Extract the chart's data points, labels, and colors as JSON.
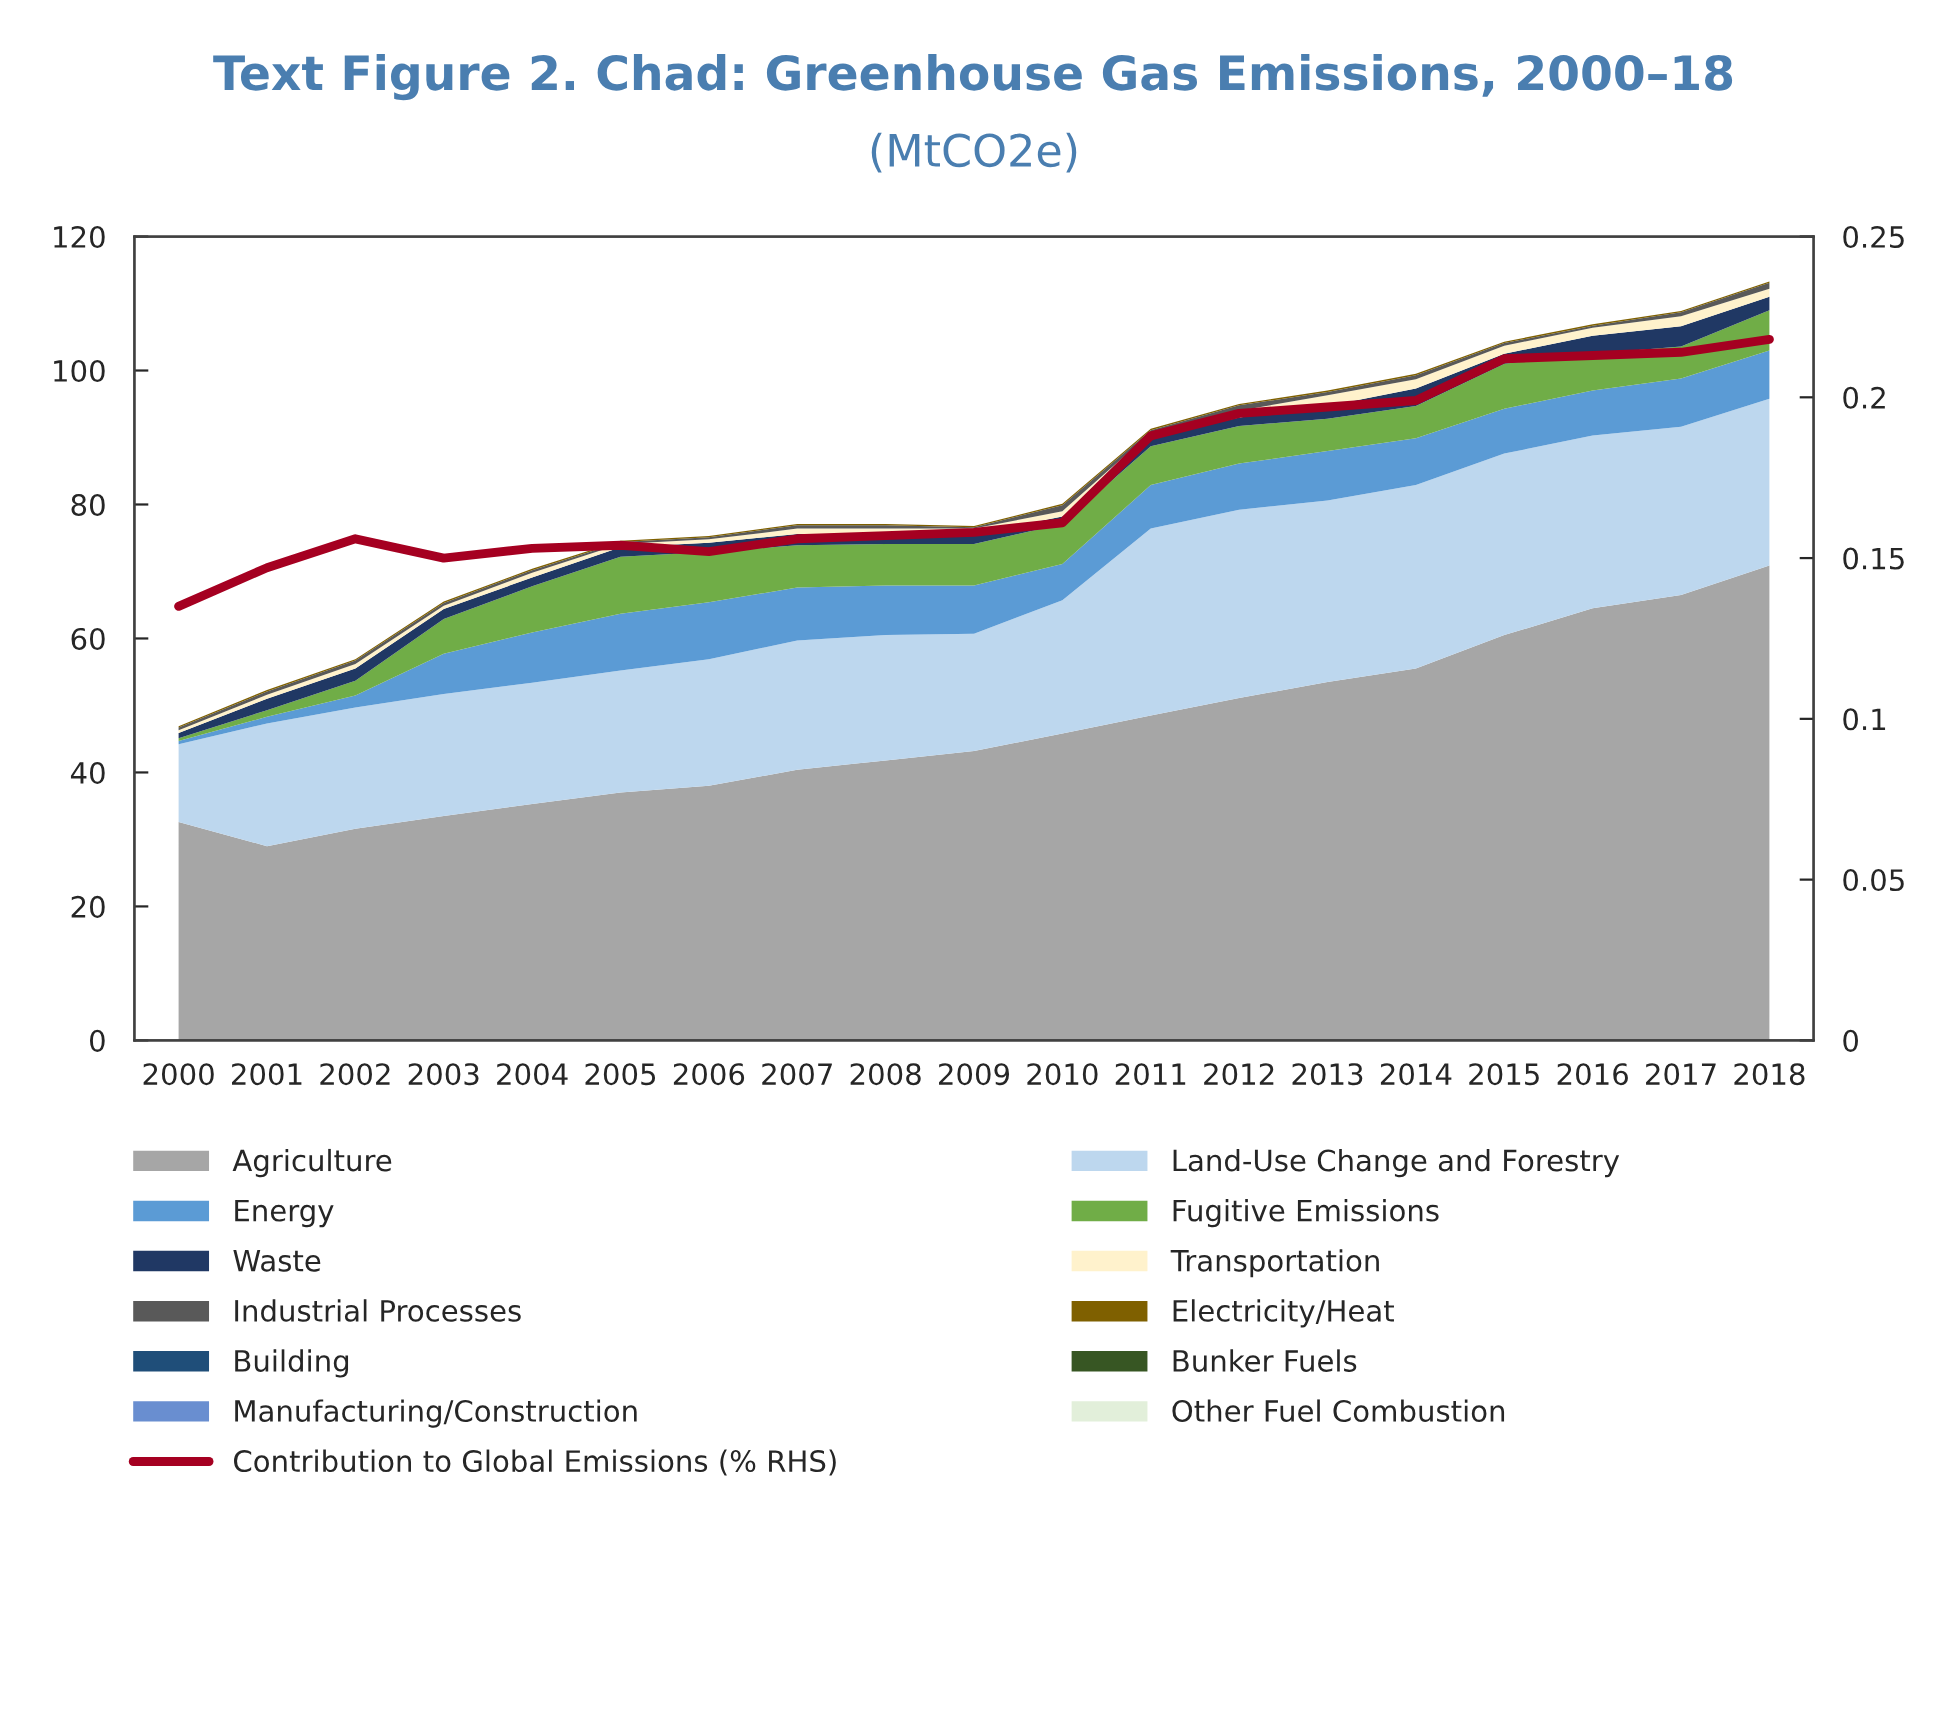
{
  "chart_data": {
    "type": "area",
    "stacked": true,
    "title": "Text Figure 2. Chad: Greenhouse Gas Emissions, 2000–18",
    "subtitle": "(MtCO2e)",
    "categories": [
      "2000",
      "2001",
      "2002",
      "2003",
      "2004",
      "2005",
      "2006",
      "2007",
      "2008",
      "2009",
      "2010",
      "2011",
      "2012",
      "2013",
      "2014",
      "2015",
      "2016",
      "2017",
      "2018"
    ],
    "ylim": [
      0,
      120
    ],
    "yticks": [
      0,
      20,
      40,
      60,
      80,
      100,
      120
    ],
    "y2lim": [
      0,
      0.25
    ],
    "y2ticks": [
      0,
      0.05,
      0.1,
      0.15,
      0.2,
      0.25
    ],
    "legend": "bottom",
    "grid": false,
    "series": [
      {
        "name": "Agriculture",
        "color": "#a6a6a6",
        "values": [
          32.6,
          29.0,
          31.6,
          33.5,
          35.3,
          37.0,
          38.0,
          40.4,
          41.8,
          43.2,
          45.8,
          48.5,
          51.1,
          53.5,
          55.5,
          60.5,
          64.5,
          66.5,
          70.9
        ]
      },
      {
        "name": "Land-Use Change and Forestry",
        "color": "#bdd7ee",
        "values": [
          11.6,
          18.3,
          18.1,
          18.2,
          18.1,
          18.2,
          18.9,
          19.3,
          18.7,
          17.5,
          19.9,
          27.9,
          28.1,
          27.1,
          27.4,
          27.1,
          25.8,
          25.1,
          24.9
        ]
      },
      {
        "name": "Energy",
        "color": "#5b9bd5",
        "values": [
          0.5,
          1.0,
          1.8,
          6.0,
          7.5,
          8.5,
          8.5,
          7.9,
          7.4,
          7.2,
          5.4,
          6.5,
          6.9,
          7.4,
          7.0,
          6.7,
          6.7,
          7.2,
          7.2
        ]
      },
      {
        "name": "Fugitive Emissions",
        "color": "#70ad47",
        "values": [
          0.4,
          1.0,
          2.2,
          5.2,
          6.9,
          8.5,
          7.5,
          6.3,
          6.2,
          6.2,
          6.0,
          5.8,
          5.6,
          4.8,
          4.8,
          6.7,
          5.5,
          4.8,
          6.0
        ]
      },
      {
        "name": "Waste",
        "color": "#203864",
        "values": [
          0.8,
          1.7,
          1.8,
          1.5,
          1.3,
          1.4,
          1.4,
          1.7,
          1.5,
          1.5,
          1.1,
          1.3,
          1.3,
          1.9,
          2.6,
          1.5,
          2.7,
          3.0,
          2.0
        ]
      },
      {
        "name": "Transportation",
        "color": "#fff2cc",
        "values": [
          0.4,
          0.6,
          0.7,
          0.5,
          0.7,
          0.5,
          0.5,
          0.8,
          0.8,
          0.8,
          0.8,
          0.7,
          1.0,
          1.6,
          1.4,
          1.2,
          1.2,
          1.5,
          1.2
        ]
      },
      {
        "name": "Industrial Processes",
        "color": "#595959",
        "values": [
          0.4,
          0.5,
          0.5,
          0.4,
          0.4,
          0.3,
          0.3,
          0.5,
          0.5,
          0.2,
          0.9,
          0.4,
          0.8,
          0.5,
          0.6,
          0.4,
          0.3,
          0.6,
          0.9
        ]
      },
      {
        "name": "Electricity/Heat",
        "color": "#7f6000",
        "values": [
          0.2,
          0.2,
          0.2,
          0.2,
          0.2,
          0.2,
          0.2,
          0.2,
          0.2,
          0.2,
          0.2,
          0.2,
          0.2,
          0.2,
          0.2,
          0.2,
          0.2,
          0.2,
          0.2
        ]
      },
      {
        "name": "Building",
        "color": "#1f4e79",
        "values": [
          null,
          null,
          null,
          null,
          null,
          null,
          null,
          null,
          null,
          null,
          null,
          null,
          null,
          null,
          null,
          null,
          null,
          null,
          null
        ]
      },
      {
        "name": "Bunker Fuels",
        "color": "#375623",
        "values": [
          null,
          null,
          null,
          null,
          null,
          null,
          null,
          null,
          null,
          null,
          null,
          null,
          null,
          null,
          null,
          null,
          null,
          null,
          null
        ]
      },
      {
        "name": "Manufacturing/Construction",
        "color": "#698ed0",
        "values": [
          null,
          null,
          null,
          null,
          null,
          null,
          null,
          null,
          null,
          null,
          null,
          null,
          null,
          null,
          null,
          null,
          null,
          null,
          null
        ]
      },
      {
        "name": "Other Fuel Combustion",
        "color": "#e2efda",
        "values": [
          null,
          null,
          null,
          null,
          null,
          null,
          null,
          null,
          null,
          null,
          null,
          null,
          null,
          null,
          null,
          null,
          null,
          null,
          null
        ]
      },
      {
        "name": "Contribution to Global Emissions (% RHS)",
        "type": "line",
        "axis": "y2",
        "color": "#a50021",
        "values": [
          0.135,
          0.147,
          0.156,
          0.15,
          0.153,
          0.154,
          0.152,
          0.156,
          0.157,
          0.158,
          0.161,
          0.188,
          0.195,
          0.197,
          0.199,
          0.212,
          0.213,
          0.214,
          0.218
        ]
      }
    ]
  }
}
